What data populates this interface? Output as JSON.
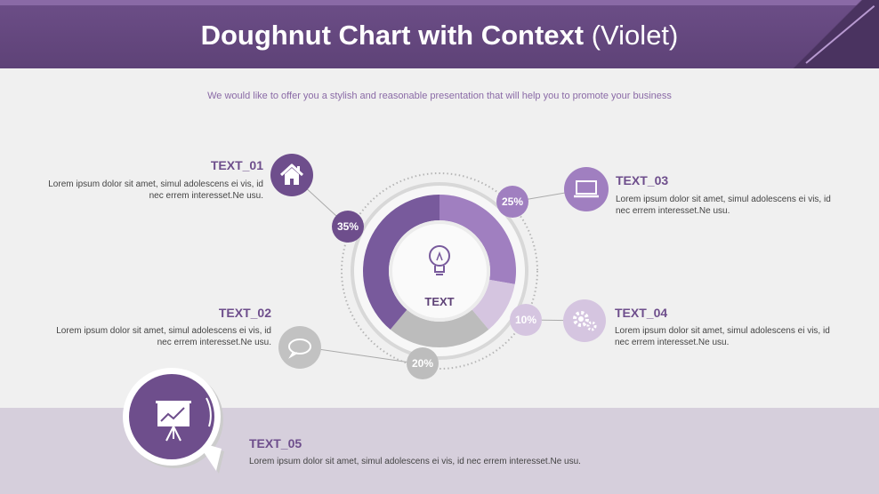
{
  "header": {
    "title_bold": "Doughnut Chart with Context",
    "title_light": "(Violet)"
  },
  "subtitle": "We would like to offer you a stylish and reasonable presentation that will help you to promote your business",
  "center_label": "TEXT",
  "items": [
    {
      "title": "TEXT_01",
      "body": "Lorem ipsum dolor sit amet, simul adolescens ei vis, id nec errem interesset.Ne usu.",
      "icon": "house-icon",
      "percent": "35%"
    },
    {
      "title": "TEXT_02",
      "body": "Lorem ipsum dolor sit amet, simul adolescens ei vis, id nec errem interesset.Ne usu.",
      "icon": "speech-cloud-icon",
      "percent": "20%"
    },
    {
      "title": "TEXT_03",
      "body": "Lorem ipsum dolor sit amet, simul adolescens ei vis, id nec errem interesset.Ne usu.",
      "icon": "laptop-icon",
      "percent": "25%"
    },
    {
      "title": "TEXT_04",
      "body": "Lorem ipsum dolor sit amet, simul adolescens ei vis, id nec errem interesset.Ne usu.",
      "icon": "gears-icon",
      "percent": "10%"
    },
    {
      "title": "TEXT_05",
      "body": "Lorem ipsum dolor sit amet, simul adolescens ei vis, id nec errem interesset.Ne usu.",
      "icon": "presentation-board-icon"
    }
  ],
  "chart_data": {
    "type": "pie",
    "title": "",
    "categories": [
      "TEXT_03",
      "TEXT_04",
      "TEXT_02",
      "TEXT_01"
    ],
    "values": [
      25,
      10,
      20,
      35
    ],
    "colors": [
      "#a07fc0",
      "#d5c5e0",
      "#bcbcbc",
      "#785a9c"
    ]
  },
  "colors": {
    "accent": "#6e4e8c",
    "header": "#5e4277",
    "band": "#d6cfdc"
  }
}
